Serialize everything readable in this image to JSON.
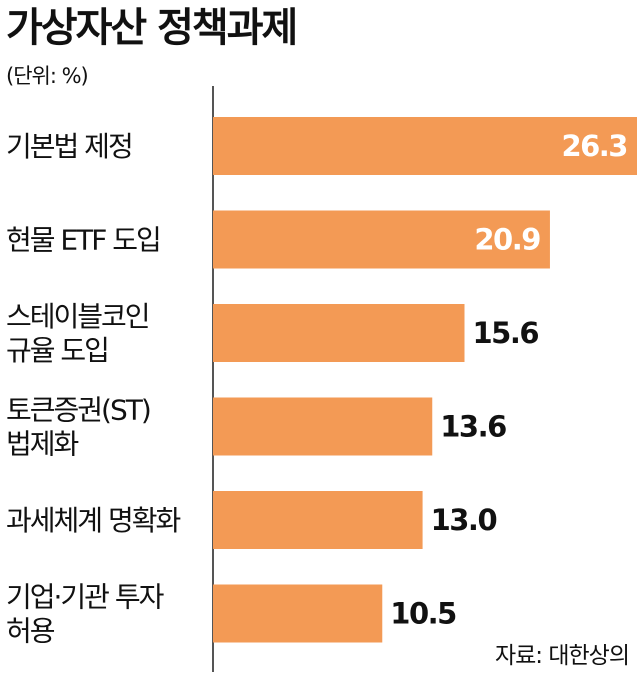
{
  "title": "가상자산 정책과제",
  "unit_label": "(단위: %)",
  "source": "자료: 대한상의",
  "colors": {
    "bar": "#f39a55",
    "axis": "#555555",
    "label_inside": "#ffffff",
    "label_outside": "#111111"
  },
  "chart_data": {
    "type": "bar",
    "orientation": "horizontal",
    "title": "가상자산 정책과제",
    "unit": "%",
    "categories": [
      [
        "기본법 제정"
      ],
      [
        "현물 ETF 도입"
      ],
      [
        "스테이블코인",
        "규율 도입"
      ],
      [
        "토큰증권(ST)",
        "법제화"
      ],
      [
        "과세체계 명확화"
      ],
      [
        "기업·기관 투자",
        "허용"
      ]
    ],
    "values": [
      26.3,
      20.9,
      15.6,
      13.6,
      13.0,
      10.5
    ],
    "value_labels": [
      "26.3",
      "20.9",
      "15.6",
      "13.6",
      "13.0",
      "10.5"
    ],
    "xlim": [
      0,
      26.3
    ],
    "grid": false,
    "legend": "none"
  }
}
